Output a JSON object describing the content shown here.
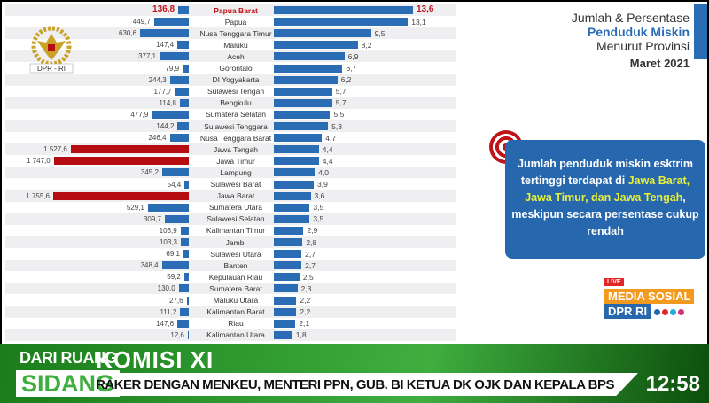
{
  "chart_data": {
    "type": "bar",
    "categories": [
      "Papua Barat",
      "Papua",
      "Nusa Tenggara Timur",
      "Maluku",
      "Aceh",
      "Gorontalo",
      "DI Yogyakarta",
      "Sulawesi Tengah",
      "Bengkulu",
      "Sumatera Selatan",
      "Sulawesi Tenggara",
      "Nusa Tenggara Barat",
      "Jawa Tengah",
      "Jawa Timur",
      "Lampung",
      "Sulawesi Barat",
      "Jawa Barat",
      "Sumatera Utara",
      "Sulawesi Selatan",
      "Kalimantan Timur",
      "Jambi",
      "Sulawesi Utara",
      "Banten",
      "Kepulauan Riau",
      "Sumatera Barat",
      "Maluku Utara",
      "Kalimantan Barat",
      "Riau",
      "Kalimantan Utara"
    ],
    "series": [
      {
        "values": [
          136.8,
          449.7,
          630.6,
          147.4,
          377.1,
          79.9,
          244.3,
          177.7,
          114.8,
          477.9,
          144.2,
          246.4,
          1527.6,
          1747.0,
          345.2,
          54.4,
          1755.6,
          529.1,
          309.7,
          106.9,
          103.3,
          69.1,
          348.4,
          59.2,
          130.0,
          27.6,
          111.2,
          147.6,
          12.6
        ],
        "labels": [
          "136,8",
          "449,7",
          "630,6",
          "147,4",
          "377,1",
          "79,9",
          "244,3",
          "177,7",
          "114,8",
          "477,9",
          "144,2",
          "246,4",
          "1 527,6",
          "1 747,0",
          "345,2",
          "54,4",
          "1 755,6",
          "529,1",
          "309,7",
          "106,9",
          "103,3",
          "69,1",
          "348,4",
          "59,2",
          "130,0",
          "27,6",
          "111,2",
          "147,6",
          "12,6"
        ]
      },
      {
        "values": [
          13.6,
          13.1,
          9.5,
          8.2,
          6.9,
          6.7,
          6.2,
          5.7,
          5.7,
          5.5,
          5.3,
          4.7,
          4.4,
          4.4,
          4.0,
          3.9,
          3.6,
          3.5,
          3.5,
          2.9,
          2.8,
          2.7,
          2.7,
          2.5,
          2.3,
          2.2,
          2.2,
          2.1,
          1.8
        ],
        "labels": [
          "13,6",
          "13,1",
          "9,5",
          "8,2",
          "6,9",
          "6,7",
          "6,2",
          "5,7",
          "5,7",
          "5,5",
          "5,3",
          "4,7",
          "4,4",
          "4,4",
          "4,0",
          "3,9",
          "3,6",
          "3,5",
          "3,5",
          "2,9",
          "2,8",
          "2,7",
          "2,7",
          "2,5",
          "2,3",
          "2,2",
          "2,2",
          "2,1",
          "1,8"
        ]
      }
    ],
    "highlight_red": [
      "Jawa Tengah",
      "Jawa Timur",
      "Jawa Barat"
    ],
    "highlight_row": "Papua Barat",
    "colors": {
      "bar": "#2a6db5",
      "red": "#b50d12"
    }
  },
  "logo": "DPR - RI",
  "title": {
    "line1": "Jumlah & Persentase",
    "line2": "Penduduk Miskin",
    "line3": "Menurut Provinsi",
    "line4": "Maret 2021"
  },
  "info": {
    "pre": "Jumlah penduduk miskin esktrim tertinggi terdapat di ",
    "hl": "Jawa Barat, Jawa Timur, dan Jawa Tengah",
    "post": ", meskipun secara persentase cukup rendah"
  },
  "social": {
    "live": "LIVE",
    "media": "MEDIA SOSIAL",
    "dpr": "DPR RI"
  },
  "ticker": {
    "from": "DARI RUANG",
    "room": "SIDANG",
    "title": "KOMISI XI",
    "subtitle": "RAKER DENGAN MENKEU, MENTERI PPN, GUB. BI KETUA DK OJK DAN KEPALA BPS",
    "clock": "12:58"
  }
}
